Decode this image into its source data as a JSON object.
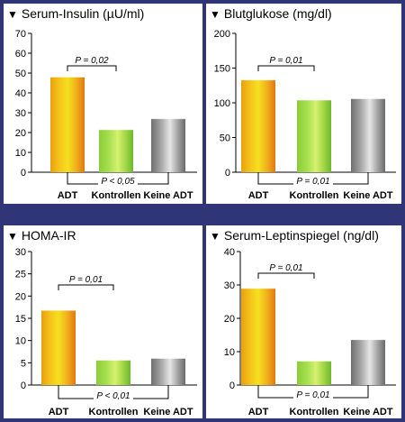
{
  "chart_data": [
    {
      "type": "bar",
      "title": "Serum-Insulin (µU/ml)",
      "categories": [
        "ADT",
        "Kontrollen",
        "Keine ADT"
      ],
      "values": [
        48,
        21.5,
        27
      ],
      "ylim": [
        0,
        70
      ],
      "yticks": [
        0,
        10,
        20,
        30,
        40,
        50,
        60,
        70
      ],
      "annotations": [
        {
          "text": "P = 0,02",
          "from": "ADT",
          "to": "Kontrollen",
          "position": "top"
        },
        {
          "text": "P < 0,05",
          "from": "ADT",
          "to": "Keine ADT",
          "position": "bottom"
        }
      ],
      "colors": [
        "#f0a020",
        "#7ec83a",
        "#9a9a9a"
      ]
    },
    {
      "type": "bar",
      "title": "Blutglukose (mg/dl)",
      "categories": [
        "ADT",
        "Kontrollen",
        "Keine ADT"
      ],
      "values": [
        133,
        104,
        106
      ],
      "ylim": [
        0,
        200
      ],
      "yticks": [
        0,
        50,
        100,
        150,
        200
      ],
      "annotations": [
        {
          "text": "P = 0,01",
          "from": "ADT",
          "to": "Kontrollen",
          "position": "top"
        },
        {
          "text": "P = 0,01",
          "from": "ADT",
          "to": "Keine ADT",
          "position": "bottom"
        }
      ],
      "colors": [
        "#f0a020",
        "#7ec83a",
        "#9a9a9a"
      ]
    },
    {
      "type": "bar",
      "title": "HOMA-IR",
      "categories": [
        "ADT",
        "Kontrollen",
        "Keine ADT"
      ],
      "values": [
        16.8,
        5.6,
        6
      ],
      "ylim": [
        0,
        30
      ],
      "yticks": [
        0,
        5,
        10,
        15,
        20,
        25,
        30
      ],
      "annotations": [
        {
          "text": "P = 0,01",
          "from": "ADT",
          "to": "Kontrollen",
          "position": "top"
        },
        {
          "text": "P < 0,01",
          "from": "ADT",
          "to": "Keine ADT",
          "position": "bottom"
        }
      ],
      "colors": [
        "#f0a020",
        "#7ec83a",
        "#9a9a9a"
      ]
    },
    {
      "type": "bar",
      "title": "Serum-Leptinspiegel (ng/dl)",
      "categories": [
        "ADT",
        "Kontrollen",
        "Keine ADT"
      ],
      "values": [
        29,
        7.2,
        13.6
      ],
      "ylim": [
        0,
        40
      ],
      "yticks": [
        0,
        10,
        20,
        30,
        40
      ],
      "annotations": [
        {
          "text": "P = 0,01",
          "from": "ADT",
          "to": "Kontrollen",
          "position": "top"
        },
        {
          "text": "P = 0,01",
          "from": "ADT",
          "to": "Keine ADT",
          "position": "bottom"
        }
      ],
      "colors": [
        "#f0a020",
        "#7ec83a",
        "#9a9a9a"
      ]
    }
  ]
}
